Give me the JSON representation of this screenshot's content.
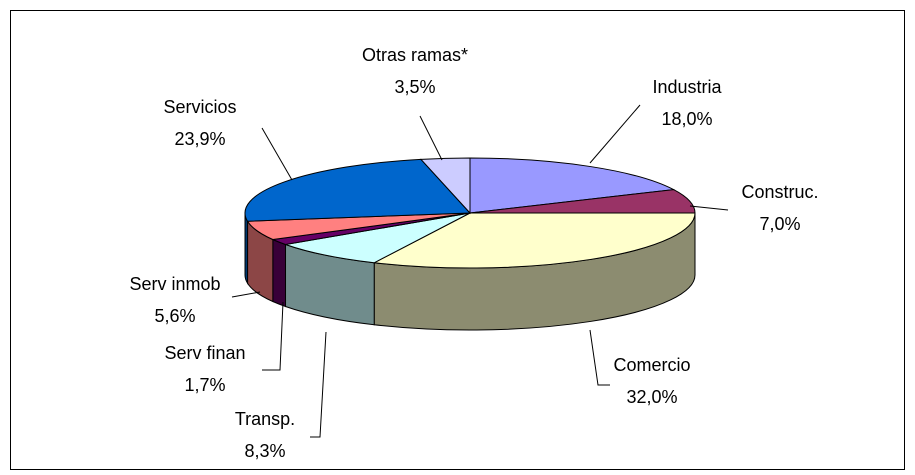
{
  "chart_data": {
    "type": "pie3d",
    "categories": [
      "Industria",
      "Construc.",
      "Comercio",
      "Transp.",
      "Serv finan",
      "Serv inmob",
      "Servicios",
      "Otras ramas*"
    ],
    "values": [
      18.0,
      7.0,
      32.0,
      8.3,
      1.7,
      5.6,
      23.9,
      3.5
    ],
    "value_labels": [
      "18,0%",
      "7,0%",
      "32,0%",
      "8,3%",
      "1,7%",
      "5,6%",
      "23,9%",
      "3,5%"
    ],
    "colors": [
      "#9999ff",
      "#993366",
      "#ffffcc",
      "#ccffff",
      "#660066",
      "#ff8080",
      "#0066cc",
      "#ccccff"
    ]
  }
}
